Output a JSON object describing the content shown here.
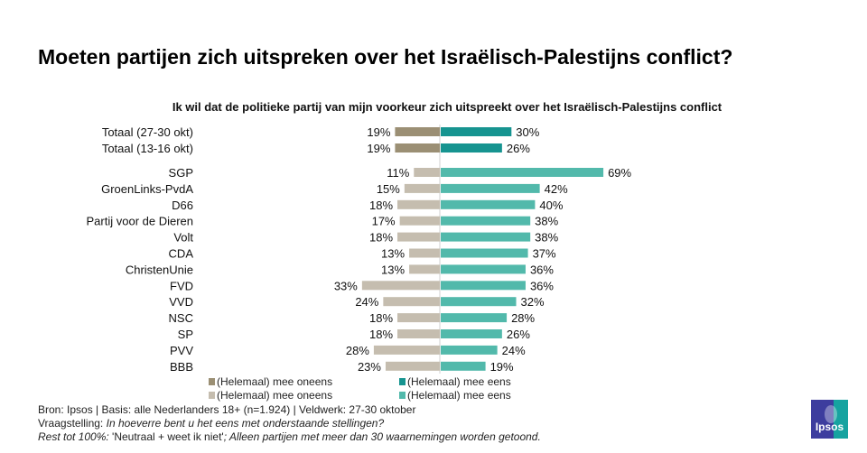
{
  "chart_data": {
    "type": "bar",
    "orientation": "horizontal-diverging",
    "title": "Moeten partijen zich uitspreken over het Israëlisch-Palestijns conflict?",
    "subtitle": "Ik wil dat de politieke partij van mijn voorkeur zich uitspreekt over het Israëlisch-Palestijns conflict",
    "categories": [
      "Totaal  (27-30 okt)",
      "Totaal (13-16 okt)",
      "SGP",
      "GroenLinks-PvdA",
      "D66",
      "Partij voor de Dieren",
      "Volt",
      "CDA",
      "ChristenUnie",
      "FVD",
      "VVD",
      "NSC",
      "SP",
      "PVV",
      "BBB"
    ],
    "series": [
      {
        "name": "(Helemaal) mee oneens",
        "values": [
          19,
          19,
          11,
          15,
          18,
          17,
          18,
          13,
          13,
          33,
          24,
          18,
          18,
          28,
          23
        ]
      },
      {
        "name": "(Helemaal) mee eens",
        "values": [
          30,
          26,
          69,
          42,
          40,
          38,
          38,
          37,
          36,
          36,
          32,
          28,
          26,
          24,
          19
        ]
      }
    ],
    "value_suffix": "%",
    "legend": [
      {
        "label": "(Helemaal) mee oneens",
        "color": "#9b8f74"
      },
      {
        "label": "(Helemaal) mee eens",
        "color": "#169490"
      },
      {
        "label": "(Helemaal) mee oneens",
        "color": "#c5bdaf"
      },
      {
        "label": "(Helemaal) mee eens",
        "color": "#52b9ab"
      }
    ],
    "legend_placement": "bottom",
    "colors": {
      "total_neg": "#9b8f74",
      "total_pos": "#169490",
      "party_neg": "#c5bdaf",
      "party_pos": "#52b9ab"
    }
  },
  "footer": {
    "source": "Bron: Ipsos | Basis: alle Nederlanders  18+ (n=1.924) | Veldwerk: 27-30  oktober",
    "question_label": "Vraagstelling: ",
    "question": "In hoeverre  bent u het eens met onderstaande  stellingen?",
    "rest_label": "Rest tot 100%: ",
    "rest_value": "'Neutraal  + weet ik niet'",
    "rest_note": "; Alleen partijen met meer dan 30 waarnemingen  worden  getoond."
  },
  "logo": {
    "text": "Ipsos",
    "color_left": "#3d3d9e",
    "color_right": "#16a3a0"
  }
}
